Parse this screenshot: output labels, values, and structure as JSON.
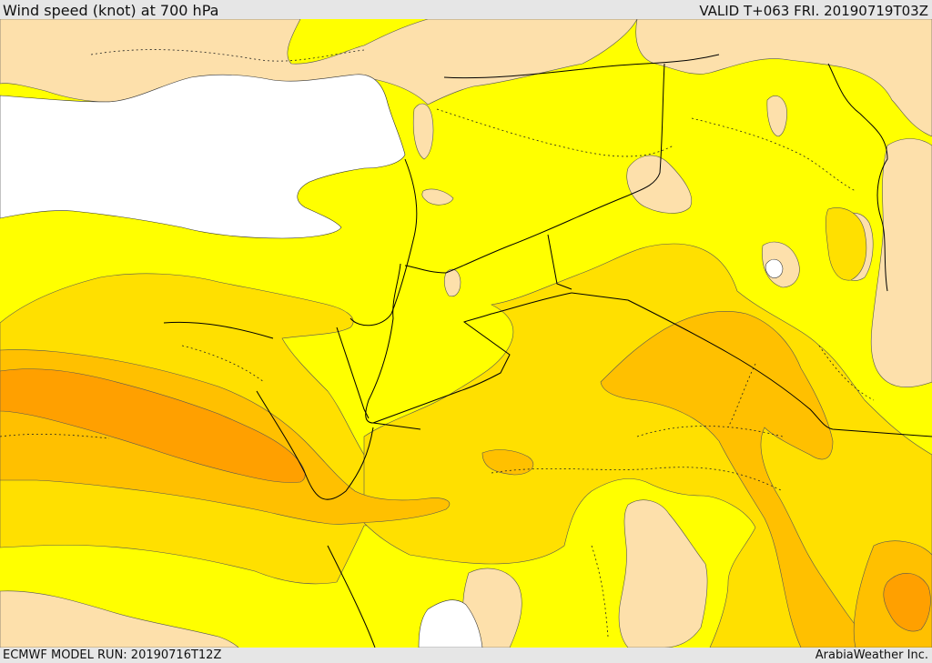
{
  "header": {
    "title": "Wind speed (knot) at 700 hPa",
    "valid": "VALID T+063 FRI. 20190719T03Z"
  },
  "footer": {
    "model_run": "ECMWF MODEL RUN: 20190716T12Z",
    "credit": "ArabiaWeather Inc."
  },
  "colors": {
    "sea": "#ffffff",
    "calm_land": "#fde0ab",
    "band_1": "#ffff00",
    "band_2": "#ffe000",
    "band_3": "#ffc000",
    "band_4": "#ffa000"
  }
}
